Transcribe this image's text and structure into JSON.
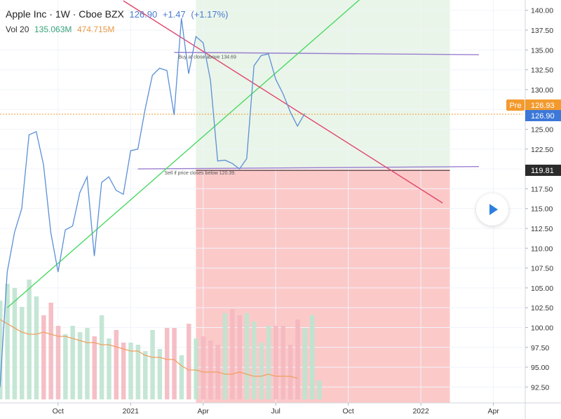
{
  "header": {
    "title": "Apple Inc · 1W · Cboe BZX",
    "last": "126.90",
    "change": "+1.47",
    "change_pct": "(+1.17%)",
    "vol_label": "Vol 20",
    "vol_value": "135.063M",
    "vol_avg": "474.715M"
  },
  "price_tags": {
    "pre_label": "Pre",
    "pre_value": "126.93",
    "last_value": "126.90",
    "stop_value": "119.81"
  },
  "annotations": {
    "buy": "Buy at close above 134.69",
    "sell": "Sell if price closes below 120.39."
  },
  "colors": {
    "price_line": "#5b8fd6",
    "trend_up": "#4cd964",
    "trend_down": "#e0446a",
    "level": "#9b7fd0",
    "profit_zone": "#e9f5e9",
    "loss_zone": "#fcc9c9",
    "vol_up": "#bfe3d0",
    "vol_down": "#f4b8c0",
    "vol_ma": "#f0a060",
    "pre_tag": "#f39a2e",
    "last_tag": "#3c78d8",
    "stop_tag": "#2b2b2b"
  },
  "chart_data": {
    "type": "line",
    "ylim": [
      90.5,
      141.3
    ],
    "yticks": [
      92.5,
      95,
      97.5,
      100,
      102.5,
      105,
      107.5,
      110,
      112.5,
      115,
      117.5,
      120,
      122.5,
      125,
      127.5,
      130,
      132.5,
      135,
      137.5,
      140
    ],
    "ytick_labels": [
      "92.50",
      "95.00",
      "97.50",
      "100.00",
      "102.50",
      "105.00",
      "107.50",
      "110.00",
      "112.50",
      "115.00",
      "117.50",
      "120.00",
      "122.50",
      "125.00",
      "127.50",
      "130.00",
      "132.50",
      "135.00",
      "137.50",
      "140.00"
    ],
    "xlabels": [
      {
        "label": "Oct",
        "week": 8
      },
      {
        "label": "2021",
        "week": 18
      },
      {
        "label": "Apr",
        "week": 28
      },
      {
        "label": "Jul",
        "week": 38
      },
      {
        "label": "Oct",
        "week": 48
      },
      {
        "label": "2022",
        "week": 58
      },
      {
        "label": "Apr",
        "week": 68
      }
    ],
    "series": [
      {
        "values": [
          92.5,
          107,
          112,
          115,
          124.3,
          124.7,
          120.5,
          112.0,
          107.0,
          112.3,
          112.8,
          117.0,
          119.0,
          109.0,
          118.3,
          119.0,
          117.3,
          116.8,
          122.3,
          122.5,
          127.5,
          131.8,
          132.7,
          132.4,
          126.8,
          139.0,
          132.0,
          136.7,
          135.9,
          131.2,
          121.0,
          121.1,
          120.7,
          120.0,
          121.3,
          133.0,
          134.3,
          134.5,
          131.3,
          129.5,
          127.2,
          125.4,
          127.0
        ]
      }
    ],
    "volume_bar_heights_pct": [
      47,
      55,
      53,
      44,
      57,
      49,
      40,
      46,
      35,
      31,
      35,
      32,
      34,
      30,
      40,
      29,
      33,
      27,
      27,
      26,
      23,
      33,
      24,
      34,
      34,
      21,
      36,
      29,
      30,
      28,
      26,
      41,
      43,
      40,
      41,
      37,
      27,
      35,
      35,
      35,
      26,
      38,
      34,
      40,
      9
    ],
    "volume_ma_pct": [
      38,
      36,
      34,
      32,
      31,
      31,
      32,
      31,
      30,
      30,
      29,
      28,
      27,
      27,
      26,
      26,
      25,
      24,
      23,
      23,
      21,
      20,
      20,
      19,
      19,
      16,
      14,
      14,
      13,
      13,
      13,
      12,
      12,
      13,
      12,
      11,
      11,
      12,
      11,
      11,
      11,
      10
    ],
    "lines": {
      "trend_up": {
        "from": [
          1,
          102.5
        ],
        "to": [
          51,
          142.5
        ]
      },
      "trend_down": {
        "from": [
          17,
          141.2
        ],
        "to": [
          61,
          115.7
        ]
      },
      "buy_level": {
        "from": [
          24,
          134.7
        ],
        "to": [
          66,
          134.4
        ]
      },
      "sell_level": {
        "from": [
          19,
          120.0
        ],
        "to": [
          66,
          120.3
        ]
      }
    },
    "zones": {
      "start_week": 27,
      "end_week": 62,
      "entry": 120.0,
      "target": 141.3,
      "stop": 90.5
    },
    "dotted_level": 126.9
  }
}
